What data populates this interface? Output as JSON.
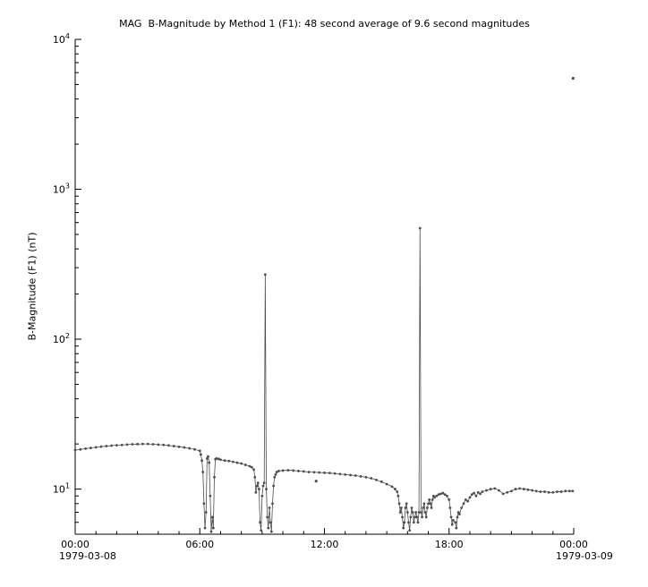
{
  "title": "MAG  B-Magnitude by Method 1 (F1): 48 second average of 9.6 second magnitudes",
  "chart_data": {
    "type": "line",
    "marker": "dot",
    "color": "#4d4d4d",
    "axis_color": "#000000",
    "background": "#ffffff",
    "yscale": "log",
    "xlim": [
      0,
      24
    ],
    "ylim": [
      5,
      10000
    ],
    "xlabel_left": "1979-03-08",
    "xlabel_right": "1979-03-09",
    "ylabel": "B-Magnitude (F1) (nT)",
    "x_unit": "hours since 1979-03-08 00:00",
    "x_major_ticks": [
      0,
      6,
      12,
      18,
      24
    ],
    "x_major_tick_labels": [
      "00:00",
      "06:00",
      "12:00",
      "18:00",
      "00:00"
    ],
    "x_minor_tick_interval_hours": 1,
    "y_major_tick_base": "10",
    "y_major_tick_exponents": [
      1,
      2,
      3,
      4
    ],
    "grid": false,
    "legend": "none",
    "points": [
      [
        0.0,
        18.2
      ],
      [
        0.25,
        18.4
      ],
      [
        0.5,
        18.6
      ],
      [
        0.75,
        18.8
      ],
      [
        1.0,
        19.0
      ],
      [
        1.25,
        19.2
      ],
      [
        1.5,
        19.35
      ],
      [
        1.75,
        19.5
      ],
      [
        2.0,
        19.6
      ],
      [
        2.25,
        19.7
      ],
      [
        2.5,
        19.8
      ],
      [
        2.75,
        19.9
      ],
      [
        3.0,
        19.95
      ],
      [
        3.25,
        20.0
      ],
      [
        3.5,
        20.0
      ],
      [
        3.75,
        19.9
      ],
      [
        4.0,
        19.8
      ],
      [
        4.25,
        19.7
      ],
      [
        4.5,
        19.55
      ],
      [
        4.75,
        19.35
      ],
      [
        5.0,
        19.15
      ],
      [
        5.25,
        18.95
      ],
      [
        5.5,
        18.7
      ],
      [
        5.75,
        18.4
      ],
      [
        6.0,
        18.0
      ],
      [
        6.05,
        17.0
      ],
      [
        6.1,
        15.5
      ],
      [
        6.15,
        13.0
      ],
      [
        6.2,
        8.0
      ],
      [
        6.25,
        5.5
      ],
      [
        6.3,
        7.0
      ],
      [
        6.35,
        16.0
      ],
      [
        6.4,
        16.5
      ],
      [
        6.45,
        15.0
      ],
      [
        6.5,
        9.0
      ],
      [
        6.55,
        5.2
      ],
      [
        6.6,
        6.5
      ],
      [
        6.65,
        5.5
      ],
      [
        6.7,
        12.0
      ],
      [
        6.75,
        15.8
      ],
      [
        6.8,
        16.0
      ],
      [
        6.9,
        15.9
      ],
      [
        7.0,
        15.7
      ],
      [
        7.2,
        15.5
      ],
      [
        7.4,
        15.4
      ],
      [
        7.6,
        15.2
      ],
      [
        7.8,
        15.0
      ],
      [
        8.0,
        14.8
      ],
      [
        8.2,
        14.5
      ],
      [
        8.4,
        14.2
      ],
      [
        8.5,
        14.0
      ],
      [
        8.6,
        13.5
      ],
      [
        8.65,
        12.0
      ],
      [
        8.7,
        9.5
      ],
      [
        8.75,
        10.5
      ],
      [
        8.8,
        11.0
      ],
      [
        8.85,
        10.0
      ],
      [
        8.9,
        6.0
      ],
      [
        8.95,
        5.3
      ],
      [
        9.0,
        9.0
      ],
      [
        9.05,
        10.5
      ],
      [
        9.1,
        11.0
      ],
      [
        9.15,
        270.0
      ],
      [
        9.2,
        10.0
      ],
      [
        9.25,
        6.5
      ],
      [
        9.3,
        5.5
      ],
      [
        9.35,
        7.5
      ],
      [
        9.4,
        6.0
      ],
      [
        9.45,
        5.2
      ],
      [
        9.5,
        8.0
      ],
      [
        9.55,
        10.5
      ],
      [
        9.6,
        12.0
      ],
      [
        9.65,
        12.5
      ],
      [
        9.7,
        13.0
      ],
      [
        9.8,
        13.2
      ],
      [
        10.0,
        13.3
      ],
      [
        10.25,
        13.35
      ],
      [
        10.5,
        13.3
      ],
      [
        10.75,
        13.2
      ],
      [
        11.0,
        13.1
      ],
      [
        11.25,
        13.0
      ],
      [
        11.5,
        12.95
      ],
      [
        11.75,
        12.9
      ],
      [
        12.0,
        12.85
      ],
      [
        12.25,
        12.8
      ],
      [
        12.5,
        12.7
      ],
      [
        12.75,
        12.6
      ],
      [
        13.0,
        12.5
      ],
      [
        13.25,
        12.4
      ],
      [
        13.5,
        12.3
      ],
      [
        13.75,
        12.15
      ],
      [
        14.0,
        12.0
      ],
      [
        14.25,
        11.8
      ],
      [
        14.5,
        11.5
      ],
      [
        14.75,
        11.2
      ],
      [
        15.0,
        10.8
      ],
      [
        15.25,
        10.4
      ],
      [
        15.4,
        10.0
      ],
      [
        15.5,
        9.6
      ],
      [
        15.55,
        9.0
      ],
      [
        15.6,
        8.0
      ],
      [
        15.65,
        7.0
      ],
      [
        15.7,
        7.5
      ],
      [
        15.75,
        6.5
      ],
      [
        15.8,
        5.5
      ],
      [
        15.85,
        6.0
      ],
      [
        15.9,
        7.5
      ],
      [
        15.95,
        8.0
      ],
      [
        16.0,
        7.0
      ],
      [
        16.05,
        6.0
      ],
      [
        16.1,
        5.3
      ],
      [
        16.15,
        6.5
      ],
      [
        16.2,
        7.5
      ],
      [
        16.25,
        7.0
      ],
      [
        16.3,
        6.0
      ],
      [
        16.35,
        6.5
      ],
      [
        16.4,
        7.0
      ],
      [
        16.45,
        6.5
      ],
      [
        16.5,
        6.0
      ],
      [
        16.55,
        7.0
      ],
      [
        16.6,
        550.0
      ],
      [
        16.65,
        7.0
      ],
      [
        16.7,
        6.5
      ],
      [
        16.75,
        7.5
      ],
      [
        16.8,
        8.0
      ],
      [
        16.85,
        7.0
      ],
      [
        16.9,
        6.5
      ],
      [
        16.95,
        7.5
      ],
      [
        17.0,
        8.0
      ],
      [
        17.05,
        8.5
      ],
      [
        17.1,
        8.0
      ],
      [
        17.15,
        7.5
      ],
      [
        17.2,
        8.5
      ],
      [
        17.25,
        9.0
      ],
      [
        17.3,
        8.8
      ],
      [
        17.4,
        9.0
      ],
      [
        17.5,
        9.2
      ],
      [
        17.6,
        9.3
      ],
      [
        17.7,
        9.4
      ],
      [
        17.8,
        9.2
      ],
      [
        17.9,
        9.0
      ],
      [
        18.0,
        8.5
      ],
      [
        18.05,
        7.5
      ],
      [
        18.1,
        6.5
      ],
      [
        18.15,
        5.8
      ],
      [
        18.2,
        6.2
      ],
      [
        18.3,
        6.0
      ],
      [
        18.35,
        5.5
      ],
      [
        18.4,
        6.5
      ],
      [
        18.45,
        7.0
      ],
      [
        18.5,
        6.8
      ],
      [
        18.6,
        7.5
      ],
      [
        18.7,
        8.0
      ],
      [
        18.8,
        8.5
      ],
      [
        18.9,
        8.3
      ],
      [
        19.0,
        8.8
      ],
      [
        19.1,
        9.2
      ],
      [
        19.2,
        9.4
      ],
      [
        19.3,
        9.0
      ],
      [
        19.4,
        9.5
      ],
      [
        19.5,
        9.3
      ],
      [
        19.6,
        9.6
      ],
      [
        19.8,
        9.8
      ],
      [
        20.0,
        10.0
      ],
      [
        20.2,
        10.1
      ],
      [
        20.4,
        9.8
      ],
      [
        20.6,
        9.3
      ],
      [
        20.8,
        9.5
      ],
      [
        21.0,
        9.7
      ],
      [
        21.2,
        10.0
      ],
      [
        21.4,
        10.1
      ],
      [
        21.6,
        10.0
      ],
      [
        21.8,
        9.9
      ],
      [
        22.0,
        9.8
      ],
      [
        22.2,
        9.7
      ],
      [
        22.4,
        9.6
      ],
      [
        22.6,
        9.6
      ],
      [
        22.8,
        9.5
      ],
      [
        23.0,
        9.5
      ],
      [
        23.2,
        9.6
      ],
      [
        23.4,
        9.6
      ],
      [
        23.6,
        9.7
      ],
      [
        23.8,
        9.7
      ],
      [
        23.95,
        9.7
      ]
    ],
    "isolated_points": [
      [
        11.6,
        11.3
      ],
      [
        23.97,
        5500.0
      ]
    ]
  }
}
